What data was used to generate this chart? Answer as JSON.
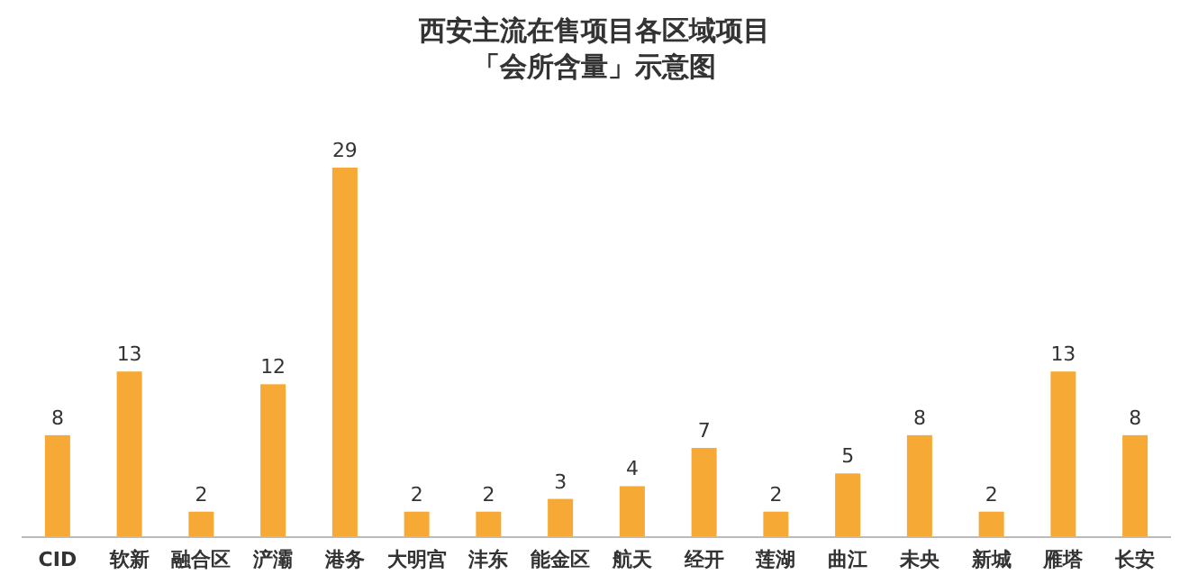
{
  "chart_data": {
    "type": "bar",
    "title": "西安主流在售项目各区域项目",
    "subtitle": "「会所含量」示意图",
    "categories": [
      "CID",
      "软新",
      "融合区",
      "浐灞",
      "港务",
      "大明宫",
      "沣东",
      "能金区",
      "航天",
      "经开",
      "莲湖",
      "曲江",
      "未央",
      "新城",
      "雁塔",
      "长安"
    ],
    "values": [
      8,
      13,
      2,
      12,
      29,
      2,
      2,
      3,
      4,
      7,
      2,
      5,
      8,
      2,
      13,
      8
    ],
    "color": "#f7a935",
    "data_labels": true,
    "grid": false
  }
}
